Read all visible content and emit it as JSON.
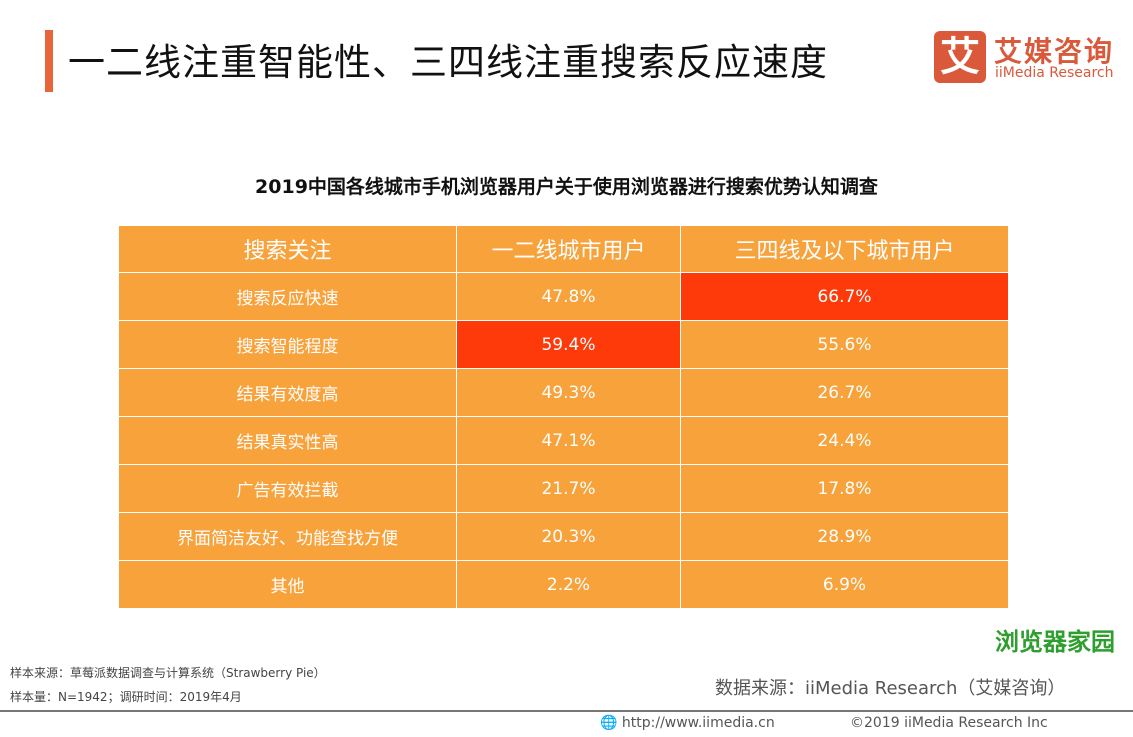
{
  "header": {
    "title": "一二线注重智能性、三四线注重搜索反应速度",
    "logo_cn": "艾媒咨询",
    "logo_en": "iiMedia Research",
    "logo_glyph": "艾"
  },
  "table": {
    "title": "2019中国各线城市手机浏览器用户关于使用浏览器进行搜索优势认知调查",
    "headers": [
      "搜索关注",
      "一二线城市用户",
      "三四线及以下城市用户"
    ],
    "rows": [
      [
        "搜索反应快速",
        "47.8%",
        "66.7%"
      ],
      [
        "搜索智能程度",
        "59.4%",
        "55.6%"
      ],
      [
        "结果有效度高",
        "49.3%",
        "26.7%"
      ],
      [
        "结果真实性高",
        "47.1%",
        "24.4%"
      ],
      [
        "广告有效拦截",
        "21.7%",
        "17.8%"
      ],
      [
        "界面简洁友好、功能查找方便",
        "20.3%",
        "28.9%"
      ],
      [
        "其他",
        "2.2%",
        "6.9%"
      ]
    ],
    "highlight_color": "#FF3A0A",
    "cell_color": "#F8A23C"
  },
  "footer": {
    "sample_source": "样本来源：草莓派数据调查与计算系统（Strawberry Pie）",
    "sample_size": "样本量：N=1942；调研时间：2019年4月",
    "data_source": "数据来源：iiMedia Research（艾媒咨询）",
    "url": "http://www.iimedia.cn",
    "copyright": "©2019  iiMedia Research  Inc",
    "watermark": "浏览器家园"
  }
}
